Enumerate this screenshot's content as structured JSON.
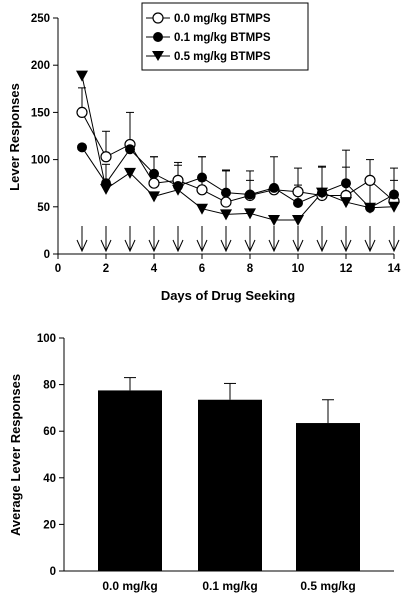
{
  "chart_data": [
    {
      "type": "line",
      "xlabel": "Days of Drug Seeking",
      "ylabel": "Lever Responses",
      "xlim": [
        0,
        14
      ],
      "ylim": [
        0,
        250
      ],
      "xticks": [
        "0",
        "2",
        "4",
        "6",
        "8",
        "10",
        "12",
        "14"
      ],
      "yticks": [
        "0",
        "50",
        "100",
        "150",
        "200",
        "250"
      ],
      "legend_position": "top-center",
      "x": [
        1,
        2,
        3,
        4,
        5,
        6,
        7,
        8,
        9,
        10,
        11,
        12,
        13,
        14
      ],
      "series": [
        {
          "name": "0.0 mg/kg BTMPS",
          "marker": "open-circle",
          "values": [
            150,
            103,
            116,
            75,
            78,
            68,
            55,
            62,
            68,
            66,
            62,
            62,
            78,
            56
          ],
          "error": [
            26,
            27,
            34,
            28,
            19,
            35,
            33,
            26,
            35,
            25,
            30,
            30,
            22,
            22
          ]
        },
        {
          "name": "0.1 mg/kg BTMPS",
          "marker": "filled-circle",
          "values": [
            113,
            75,
            111,
            85,
            72,
            81,
            65,
            63,
            70,
            54,
            65,
            75,
            49,
            63
          ],
          "error": [
            0,
            20,
            0,
            18,
            22,
            22,
            24,
            15,
            0,
            19,
            28,
            35,
            25,
            28
          ]
        },
        {
          "name": "0.5 mg/kg BTMPS",
          "marker": "filled-triangle-down",
          "values": [
            189,
            69,
            86,
            61,
            68,
            48,
            42,
            43,
            36,
            36,
            65,
            55,
            49,
            50
          ],
          "error": [
            0,
            0,
            0,
            0,
            0,
            0,
            0,
            0,
            0,
            0,
            0,
            0,
            0,
            0
          ]
        }
      ],
      "arrows_at_days": [
        1,
        2,
        3,
        4,
        5,
        6,
        7,
        8,
        9,
        10,
        11,
        12,
        13,
        14
      ]
    },
    {
      "type": "bar",
      "ylabel": "Average Lever Responses",
      "ylim": [
        0,
        100
      ],
      "yticks": [
        "0",
        "20",
        "40",
        "60",
        "80",
        "100"
      ],
      "categories": [
        "0.0 mg/kg",
        "0.1 mg/kg",
        "0.5 mg/kg"
      ],
      "values": [
        77.5,
        73.5,
        63.5
      ],
      "error": [
        5.5,
        7,
        10
      ],
      "bar_color": "#000000"
    }
  ]
}
